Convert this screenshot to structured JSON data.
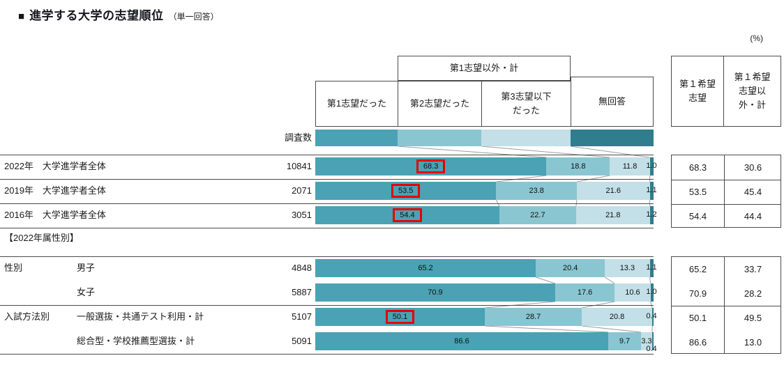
{
  "title": {
    "bullet": "■",
    "main": "進学する大学の志望順位",
    "note": "（単一回答）",
    "unit": "(%)"
  },
  "columns": {
    "survey_label": "調査数",
    "other_total": "第1志望以外・計",
    "col1": "第1志望だった",
    "col2": "第2志望だった",
    "col3": "第3志望以下\nだった",
    "col4": "無回答"
  },
  "summary_header": {
    "col1": "第１希望\n志望",
    "col2": "第１希望\n志望以\n外・計"
  },
  "section2_label": "【2022年属性別】",
  "colors": {
    "seg1": "#4aa2b4",
    "seg2": "#8ac6d1",
    "seg3": "#c3dfe7",
    "seg4": "#2f7d8d",
    "highlight": "#e60000",
    "connector": "#9b9b9b"
  },
  "chart_data": {
    "type": "bar",
    "stacked": true,
    "title": "進学する大学の志望順位（単一回答）",
    "unit": "%",
    "x_axis": {
      "min": 0,
      "max": 100
    },
    "series_labels": [
      "第1志望だった",
      "第2志望だった",
      "第3志望以下だった",
      "無回答"
    ],
    "sections": [
      {
        "rows": [
          {
            "group": "",
            "label": "2022年　大学進学者全体",
            "n": "10841",
            "values": [
              "68.3",
              "18.8",
              "11.8",
              "1.0"
            ],
            "highlight_first": true,
            "summary": [
              "68.3",
              "30.6"
            ]
          },
          {
            "group": "",
            "label": "2019年　大学進学者全体",
            "n": "2071",
            "values": [
              "53.5",
              "23.8",
              "21.6",
              "1.1"
            ],
            "highlight_first": true,
            "summary": [
              "53.5",
              "45.4"
            ]
          },
          {
            "group": "",
            "label": "2016年　大学進学者全体",
            "n": "3051",
            "values": [
              "54.4",
              "22.7",
              "21.8",
              "1.2"
            ],
            "highlight_first": true,
            "summary": [
              "54.4",
              "44.4"
            ]
          }
        ]
      },
      {
        "rows": [
          {
            "group": "性別",
            "label": "男子",
            "n": "4848",
            "values": [
              "65.2",
              "20.4",
              "13.3",
              "1.1"
            ],
            "highlight_first": false,
            "summary": [
              "65.2",
              "33.7"
            ]
          },
          {
            "group": "",
            "label": "女子",
            "n": "5887",
            "values": [
              "70.9",
              "17.6",
              "10.6",
              "1.0"
            ],
            "highlight_first": false,
            "summary": [
              "70.9",
              "28.2"
            ]
          },
          {
            "group": "入試方法別",
            "label": "一般選抜・共通テスト利用・計",
            "n": "5107",
            "values": [
              "50.1",
              "28.7",
              "20.8",
              "0.4"
            ],
            "highlight_first": true,
            "summary": [
              "50.1",
              "49.5"
            ]
          },
          {
            "group": "",
            "label": "総合型・学校推薦型選抜・計",
            "n": "5091",
            "values": [
              "86.6",
              "9.7",
              "3.3",
              "0.4"
            ],
            "highlight_first": false,
            "summary": [
              "86.6",
              "13.0"
            ],
            "offset_last_label": true
          }
        ]
      }
    ]
  }
}
